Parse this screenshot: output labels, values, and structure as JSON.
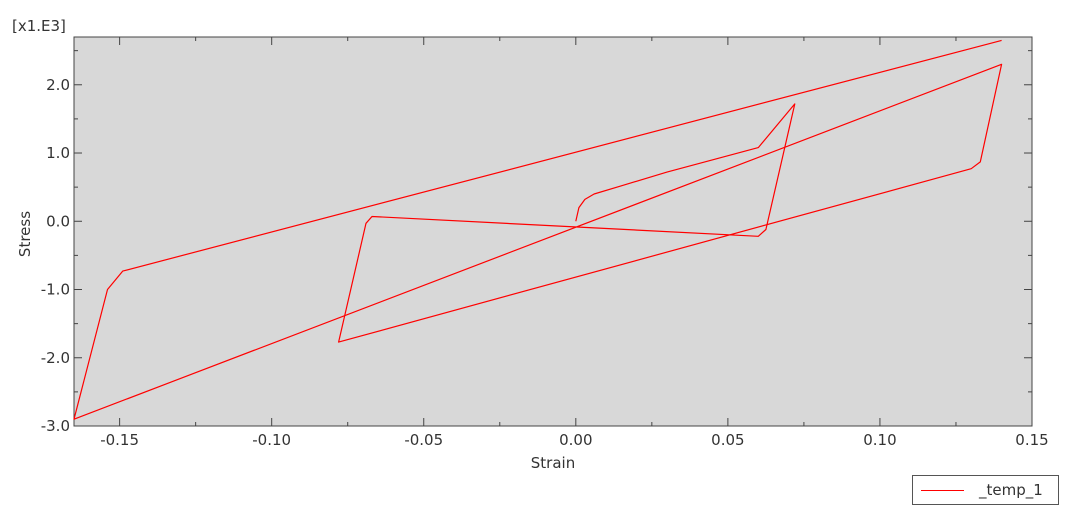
{
  "chart_data": {
    "type": "line",
    "title": "",
    "xlabel": "Strain",
    "ylabel": "Stress",
    "y_multiplier": "[x1.E3]",
    "xlim": [
      -0.165,
      0.15
    ],
    "ylim": [
      -3.0,
      2.7
    ],
    "x_ticks": [
      -0.15,
      -0.1,
      -0.05,
      0.0,
      0.05,
      0.1,
      0.15
    ],
    "x_tick_labels": [
      "-0.15",
      "-0.10",
      "-0.05",
      "0.00",
      "0.05",
      "0.10",
      "0.15"
    ],
    "y_ticks": [
      -3.0,
      -2.0,
      -1.0,
      0.0,
      1.0,
      2.0
    ],
    "y_tick_labels": [
      "-3.0",
      "-2.0",
      "-1.0",
      "0.0",
      "1.0",
      "2.0"
    ],
    "grid": false,
    "legend_position": "bottom-right",
    "background_color": "#d8d8d8",
    "series": [
      {
        "name": "_temp_1",
        "color": "#ff0000",
        "points": [
          [
            0.0,
            0.0
          ],
          [
            0.001,
            0.2
          ],
          [
            0.003,
            0.32
          ],
          [
            0.006,
            0.4
          ],
          [
            0.015,
            0.52
          ],
          [
            0.03,
            0.72
          ],
          [
            0.045,
            0.9
          ],
          [
            0.06,
            1.08
          ],
          [
            0.072,
            1.72
          ],
          [
            0.0625,
            -0.12
          ],
          [
            0.06,
            -0.22
          ],
          [
            -0.067,
            0.07
          ],
          [
            -0.069,
            -0.03
          ],
          [
            -0.078,
            -1.77
          ],
          [
            0.13,
            0.77
          ],
          [
            0.133,
            0.87
          ],
          [
            0.14,
            2.3
          ],
          [
            -0.165,
            -2.9
          ],
          [
            -0.154,
            -1.0
          ],
          [
            -0.149,
            -0.73
          ],
          [
            0.14,
            2.65
          ]
        ]
      }
    ]
  }
}
